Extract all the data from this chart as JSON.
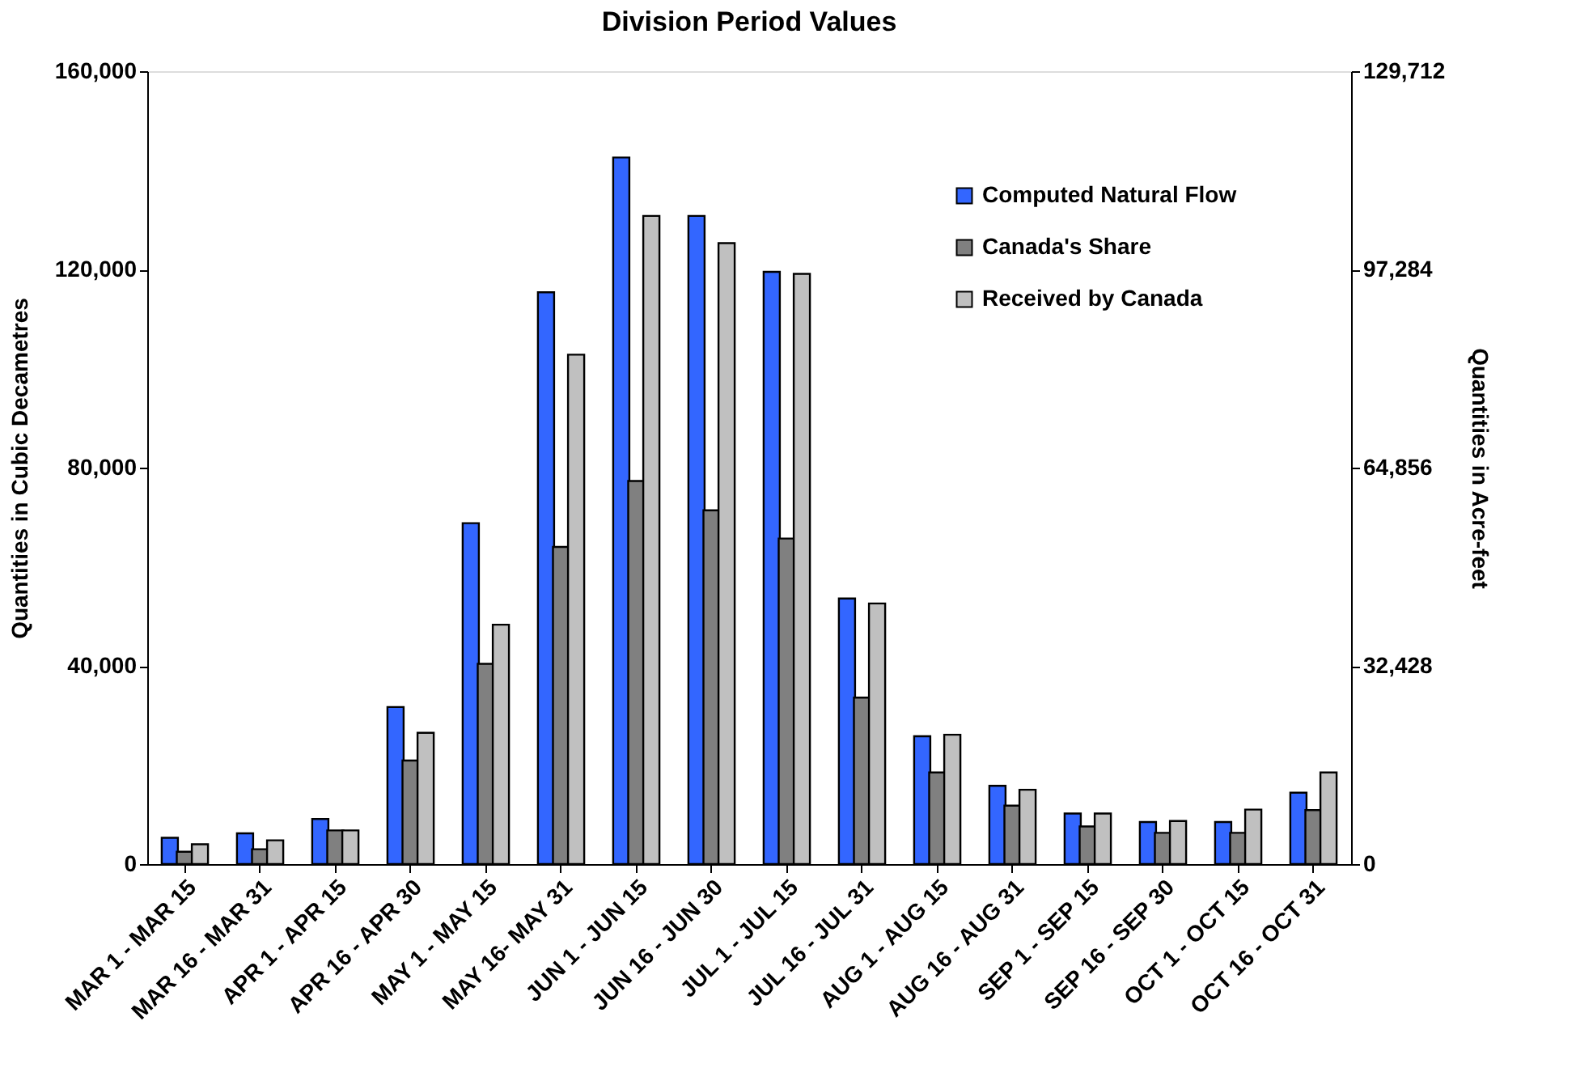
{
  "chart_data": {
    "type": "bar",
    "title": "Division Period Values",
    "ylabel": "Quantities  in Cubic Decametres",
    "y2label": "Quantities  in Acre-feet",
    "categories": [
      "MAR 1 - MAR 15",
      "MAR 16 - MAR 31",
      "APR 1 - APR 15",
      "APR 16 - APR 30",
      "MAY 1 - MAY 15",
      "MAY 16- MAY 31",
      "JUN 1 - JUN 15",
      "JUN 16 - JUN 30",
      "JUL 1 - JUL 15",
      "JUL 16 - JUL 31",
      "AUG 1 - AUG 15",
      "AUG 16 - AUG 31",
      "SEP 1 - SEP 15",
      "SEP 16 - SEP 30",
      "OCT 1 - OCT 15",
      "OCT 16 - OCT 31"
    ],
    "series": [
      {
        "name": "Computed Natural Flow",
        "color": "#3366ff",
        "values": [
          5300,
          6200,
          9100,
          31700,
          68800,
          115400,
          142600,
          130800,
          119500,
          53600,
          25800,
          15800,
          10200,
          8500,
          8500,
          14400
        ]
      },
      {
        "name": "Canada's Share",
        "color": "#808080",
        "values": [
          2500,
          3000,
          6800,
          20900,
          40400,
          64000,
          77300,
          71400,
          65700,
          33600,
          18500,
          11800,
          7600,
          6300,
          6300,
          10900
        ]
      },
      {
        "name": "Received by Canada",
        "color": "#c0c0c0",
        "values": [
          4000,
          4800,
          6800,
          26500,
          48300,
          102800,
          130800,
          125300,
          119100,
          52600,
          26100,
          15000,
          10200,
          8700,
          11000,
          18500
        ]
      }
    ],
    "ylim": [
      0,
      160000
    ],
    "yticks": [
      {
        "value": 0,
        "label": "0"
      },
      {
        "value": 40000,
        "label": "40,000"
      },
      {
        "value": 80000,
        "label": "80,000"
      },
      {
        "value": 120000,
        "label": "120,000"
      },
      {
        "value": 160000,
        "label": "160,000"
      }
    ],
    "y2lim": [
      0,
      129712
    ],
    "y2ticks": [
      {
        "value": 0,
        "label": "0"
      },
      {
        "value": 32428,
        "label": "32,428"
      },
      {
        "value": 64856,
        "label": "64,856"
      },
      {
        "value": 97284,
        "label": "97,284"
      },
      {
        "value": 129712,
        "label": "129,712"
      }
    ],
    "grid": false,
    "legend": "top right"
  }
}
